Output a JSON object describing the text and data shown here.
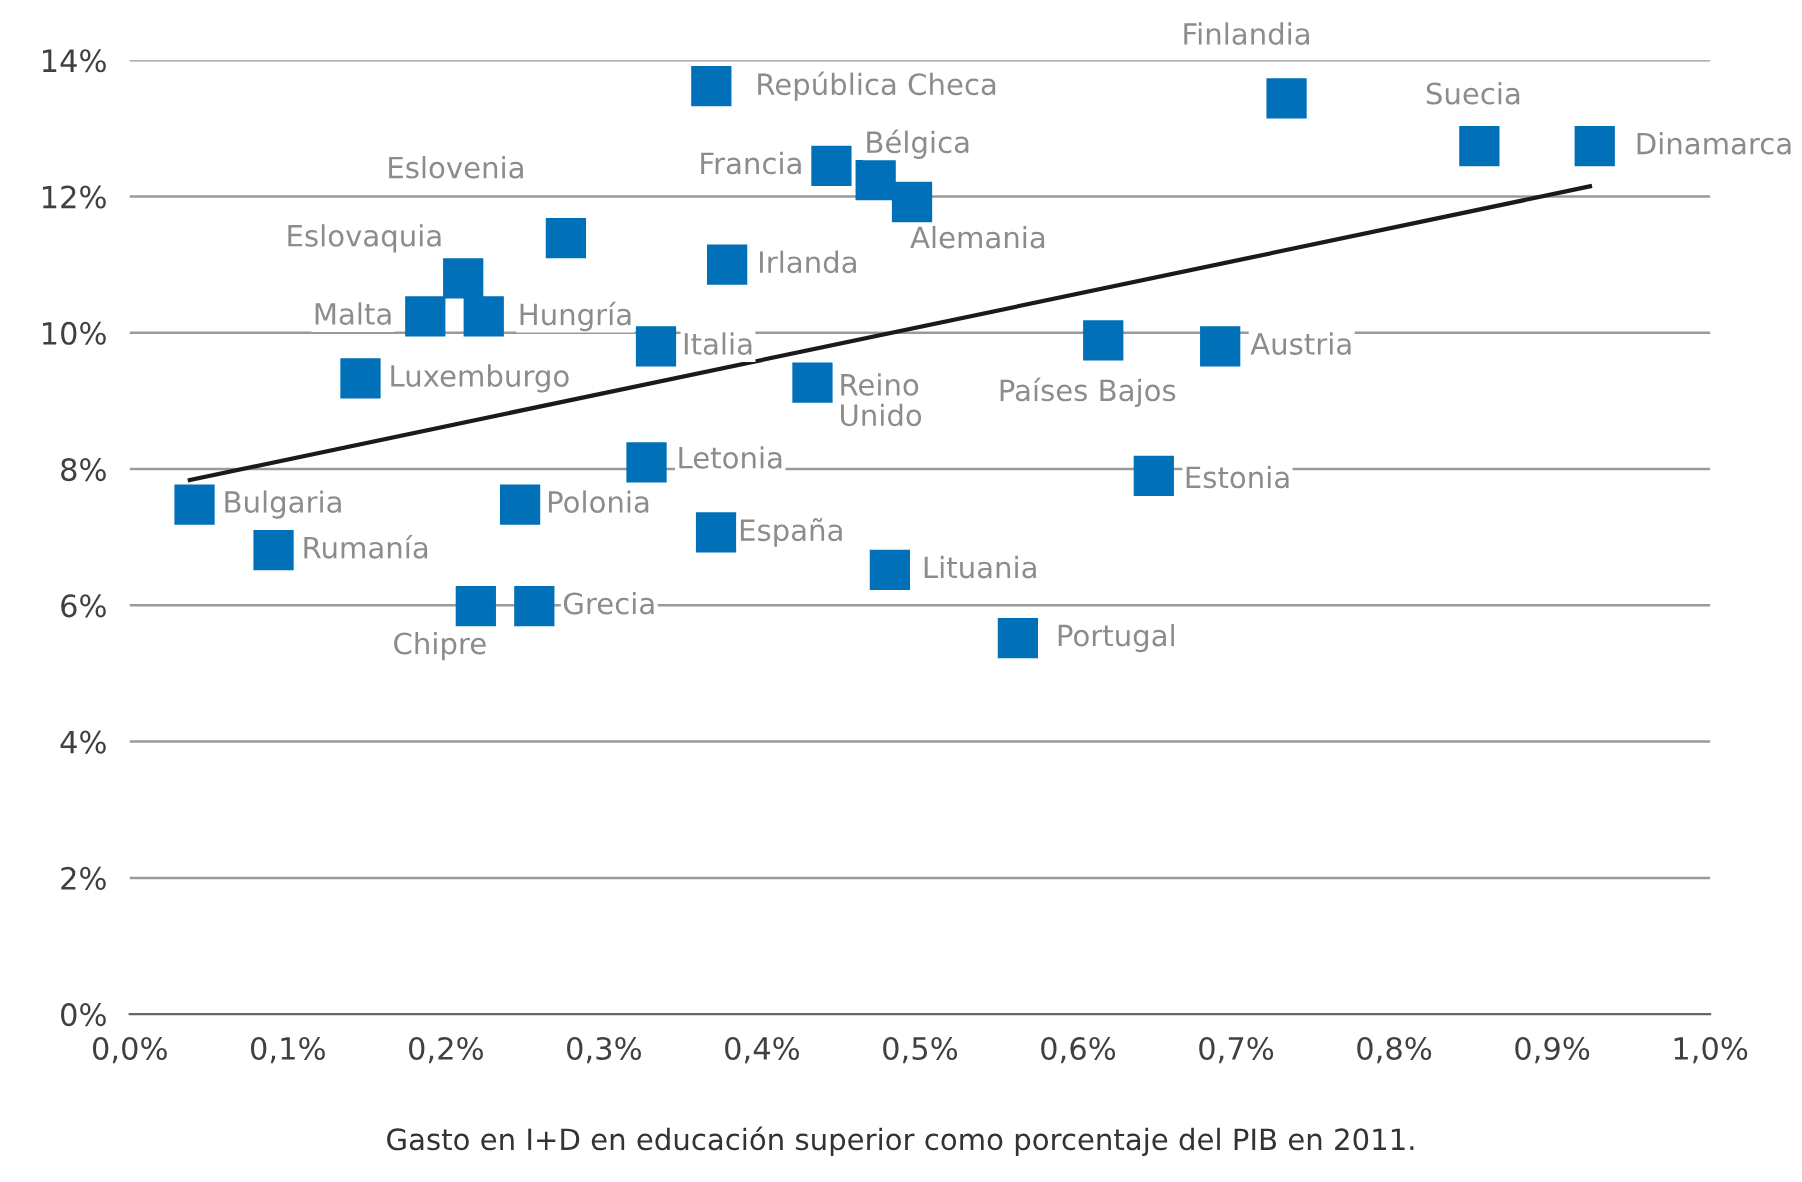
{
  "chart_data": {
    "type": "scatter",
    "xlabel": "Gasto en I+D en educación superior como porcentaje del PIB en 2011.",
    "xlim": [
      0,
      1.0
    ],
    "xticks": [
      {
        "value": 0,
        "label": "0,0%"
      },
      {
        "value": 0.1,
        "label": "0,1%"
      },
      {
        "value": 0.2,
        "label": "0,2%"
      },
      {
        "value": 0.3,
        "label": "0,3%"
      },
      {
        "value": 0.4,
        "label": "0,4%"
      },
      {
        "value": 0.5,
        "label": "0,5%"
      },
      {
        "value": 0.6,
        "label": "0,6%"
      },
      {
        "value": 0.7,
        "label": "0,7%"
      },
      {
        "value": 0.8,
        "label": "0,8%"
      },
      {
        "value": 0.9,
        "label": "0,9%"
      },
      {
        "value": 1.0,
        "label": "1,0%"
      }
    ],
    "ylim": [
      0,
      14
    ],
    "yticks": [
      {
        "value": 0,
        "label": "0%"
      },
      {
        "value": 2,
        "label": "2%"
      },
      {
        "value": 4,
        "label": "4%"
      },
      {
        "value": 6,
        "label": "6%"
      },
      {
        "value": 8,
        "label": "8%"
      },
      {
        "value": 10,
        "label": "10%"
      },
      {
        "value": 12,
        "label": "12%"
      },
      {
        "value": 14,
        "label": "14%"
      }
    ],
    "grid": "y",
    "legend": false,
    "series": [
      {
        "marker": "square",
        "color": "#0070b8",
        "x": [
          0.368,
          0.732,
          0.854,
          0.927,
          0.444,
          0.472,
          0.495,
          0.276,
          0.378,
          0.211,
          0.187,
          0.224,
          0.333,
          0.616,
          0.69,
          0.146,
          0.432,
          0.327,
          0.648,
          0.041,
          0.247,
          0.371,
          0.091,
          0.481,
          0.219,
          0.256,
          0.562
        ],
        "values": [
          13.62,
          13.44,
          12.74,
          12.74,
          12.45,
          12.24,
          11.92,
          11.39,
          11.0,
          10.8,
          10.24,
          10.24,
          9.8,
          9.89,
          9.8,
          9.33,
          9.27,
          8.1,
          7.9,
          7.48,
          7.48,
          7.07,
          6.81,
          6.52,
          5.99,
          5.99,
          5.52
        ]
      },
      {
        "type": "line",
        "marker": "none",
        "color": "#1a1a1a",
        "x": [
          0.038,
          0.924
        ],
        "values": [
          7.84,
          12.15
        ]
      }
    ],
    "annotations": [
      {
        "text": "República Checa",
        "x": 0.368,
        "y": 13.62
      },
      {
        "text": "Finlandia",
        "x": 0.732,
        "y": 13.44
      },
      {
        "text": "Suecia",
        "x": 0.854,
        "y": 12.74
      },
      {
        "text": "Dinamarca",
        "x": 0.927,
        "y": 12.74
      },
      {
        "text": "Francia",
        "x": 0.444,
        "y": 12.45
      },
      {
        "text": "Bélgica",
        "x": 0.472,
        "y": 12.24
      },
      {
        "text": "Alemania",
        "x": 0.495,
        "y": 11.92
      },
      {
        "text": "Eslovenia",
        "x": 0.276,
        "y": 11.39
      },
      {
        "text": "Irlanda",
        "x": 0.378,
        "y": 11.0
      },
      {
        "text": "Eslovaquia",
        "x": 0.211,
        "y": 10.8
      },
      {
        "text": "Malta",
        "x": 0.187,
        "y": 10.24
      },
      {
        "text": "Hungría",
        "x": 0.224,
        "y": 10.24
      },
      {
        "text": "Italia",
        "x": 0.333,
        "y": 9.8
      },
      {
        "text": "Países Bajos",
        "x": 0.616,
        "y": 9.89
      },
      {
        "text": "Austria",
        "x": 0.69,
        "y": 9.8
      },
      {
        "text": "Luxemburgo",
        "x": 0.146,
        "y": 9.33
      },
      {
        "text": "Reino\nUnido",
        "x": 0.432,
        "y": 9.27
      },
      {
        "text": "Letonia",
        "x": 0.327,
        "y": 8.1
      },
      {
        "text": "Estonia",
        "x": 0.648,
        "y": 7.9
      },
      {
        "text": "Bulgaria",
        "x": 0.041,
        "y": 7.48
      },
      {
        "text": "Polonia",
        "x": 0.247,
        "y": 7.48
      },
      {
        "text": "España",
        "x": 0.371,
        "y": 7.07
      },
      {
        "text": "Rumanía",
        "x": 0.091,
        "y": 6.81
      },
      {
        "text": "Lituania",
        "x": 0.481,
        "y": 6.52
      },
      {
        "text": "Chipre",
        "x": 0.219,
        "y": 5.99
      },
      {
        "text": "Grecia",
        "x": 0.256,
        "y": 5.99
      },
      {
        "text": "Portugal",
        "x": 0.562,
        "y": 5.52
      }
    ]
  }
}
